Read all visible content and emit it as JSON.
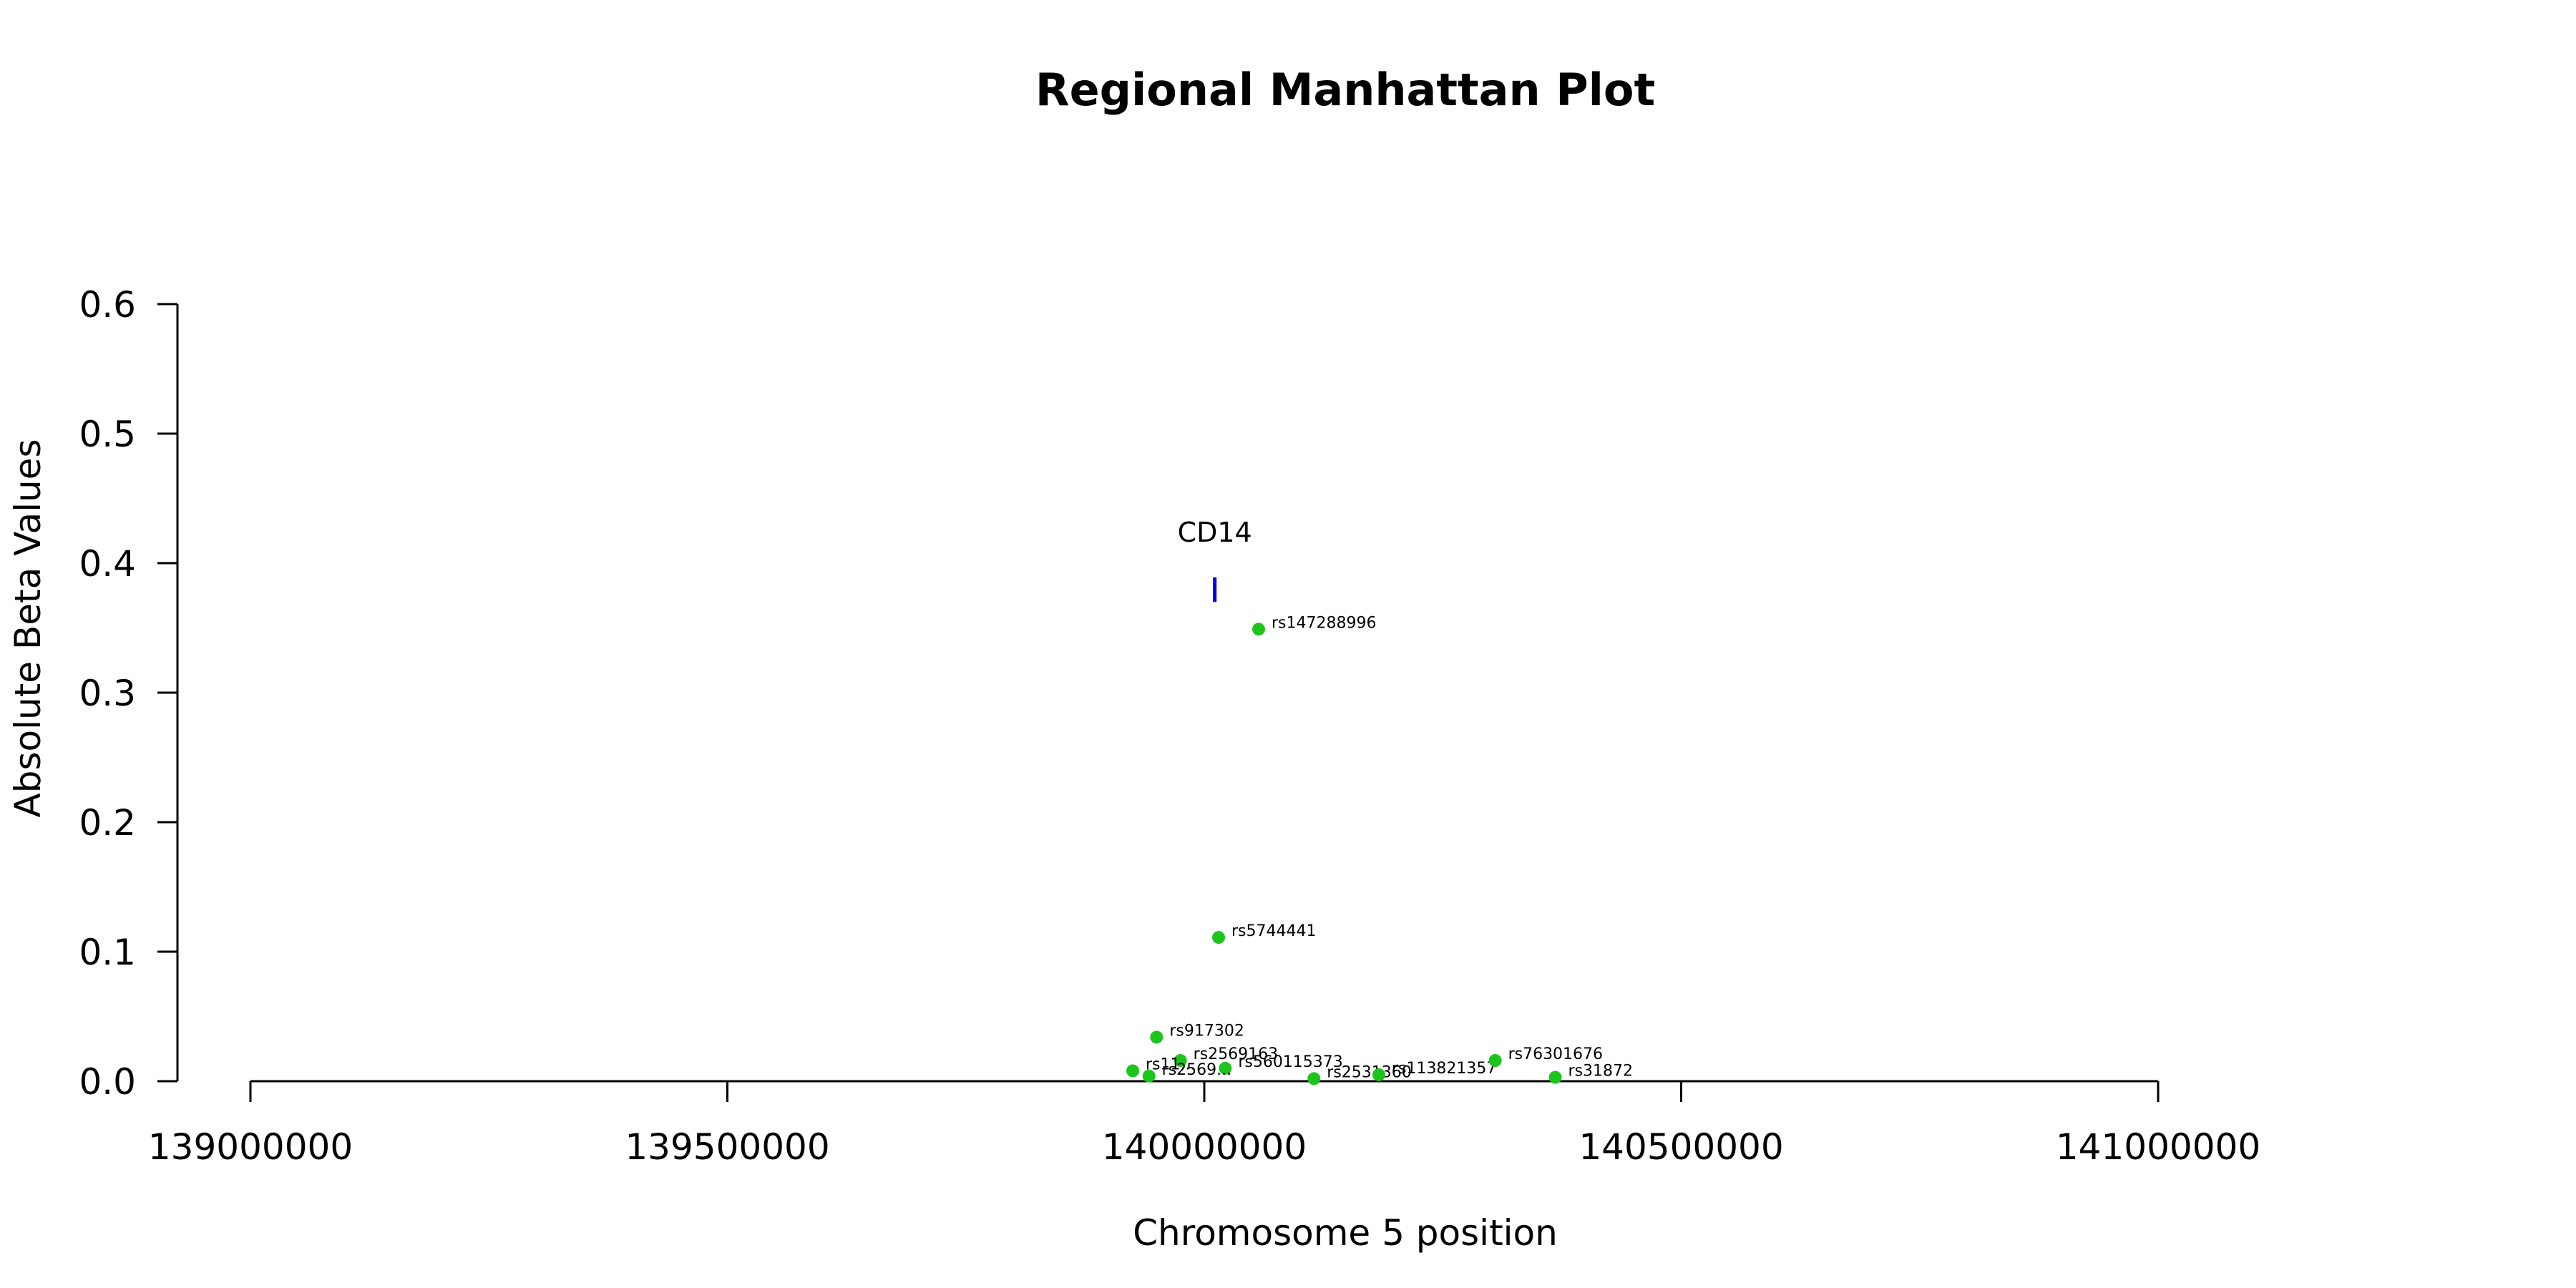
{
  "chart_data": {
    "type": "scatter",
    "title": "Regional Manhattan Plot",
    "xlabel": "Chromosome 5 position",
    "ylabel": "Absolute Beta Values",
    "xlim": [
      139000000,
      141000000
    ],
    "ylim": [
      0,
      0.6
    ],
    "x_ticks": [
      139000000,
      139500000,
      140000000,
      140500000,
      141000000
    ],
    "y_ticks": [
      0.0,
      0.1,
      0.2,
      0.3,
      0.4,
      0.5,
      0.6
    ],
    "y_tick_labels": [
      "0.0",
      "0.1",
      "0.2",
      "0.3",
      "0.4",
      "0.5",
      "0.6"
    ],
    "grid": false,
    "point_color": "#1ec41e",
    "points": [
      {
        "label": "rs147288996",
        "x": 140057000,
        "y": 0.349
      },
      {
        "label": "rs5744441",
        "x": 140015000,
        "y": 0.111
      },
      {
        "label": "rs917302",
        "x": 139950000,
        "y": 0.034
      },
      {
        "label": "rs2569163",
        "x": 139975000,
        "y": 0.016
      },
      {
        "label": "rs560115373",
        "x": 140022000,
        "y": 0.01
      },
      {
        "label": "rs11...",
        "x": 139925000,
        "y": 0.008
      },
      {
        "label": "rs2569...",
        "x": 139942000,
        "y": 0.004
      },
      {
        "label": "rs2531360",
        "x": 140115000,
        "y": 0.002
      },
      {
        "label": "rs113821357",
        "x": 140183000,
        "y": 0.005
      },
      {
        "label": "rs76301676",
        "x": 140305000,
        "y": 0.016
      },
      {
        "label": "rs31872",
        "x": 140368000,
        "y": 0.003
      }
    ],
    "gene": {
      "name": "CD14",
      "x": 140011000,
      "y_from": 0.37,
      "y_to": 0.389,
      "color": "#0000ee"
    }
  }
}
